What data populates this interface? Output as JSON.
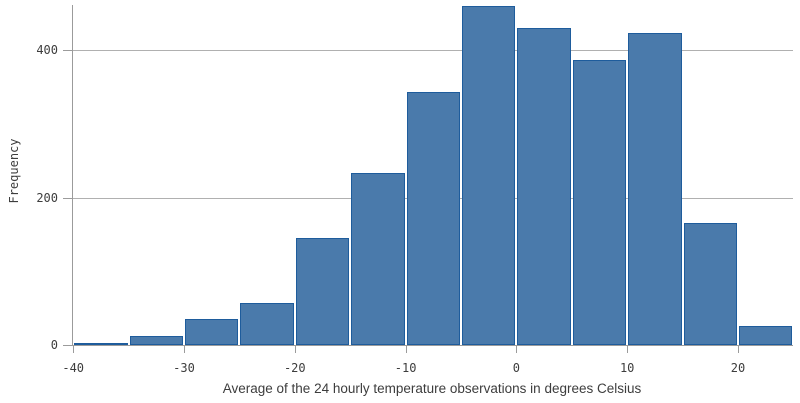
{
  "chart": {
    "title": "",
    "ylabel": "Frequency",
    "xlabel": "Average of the 24 hourly temperature observations in degrees Celsius"
  },
  "chart_data": {
    "type": "bar",
    "subtype": "histogram",
    "title": "",
    "xlabel": "Average of the 24 hourly temperature observations in degrees Celsius",
    "ylabel": "Frequency",
    "bin_width": 5,
    "bin_edges": [
      -40,
      -35,
      -30,
      -25,
      -20,
      -15,
      -10,
      -5,
      0,
      5,
      10,
      15,
      20,
      25
    ],
    "values": [
      2,
      12,
      35,
      57,
      145,
      233,
      343,
      460,
      430,
      386,
      423,
      166,
      26
    ],
    "x_ticks": [
      -40,
      -30,
      -20,
      -10,
      0,
      10,
      20
    ],
    "y_ticks": [
      0,
      200,
      400
    ],
    "xlim": [
      -40,
      25
    ],
    "ylim": [
      0,
      466
    ],
    "grid": "horizontal",
    "legend": "none",
    "colors": {
      "bar_fill": "#4a7aab",
      "bar_border": "#1e5c9c",
      "gridline": "#b0b0b0",
      "axis": "#9b9b9b",
      "text": "#3d3d3d"
    }
  }
}
